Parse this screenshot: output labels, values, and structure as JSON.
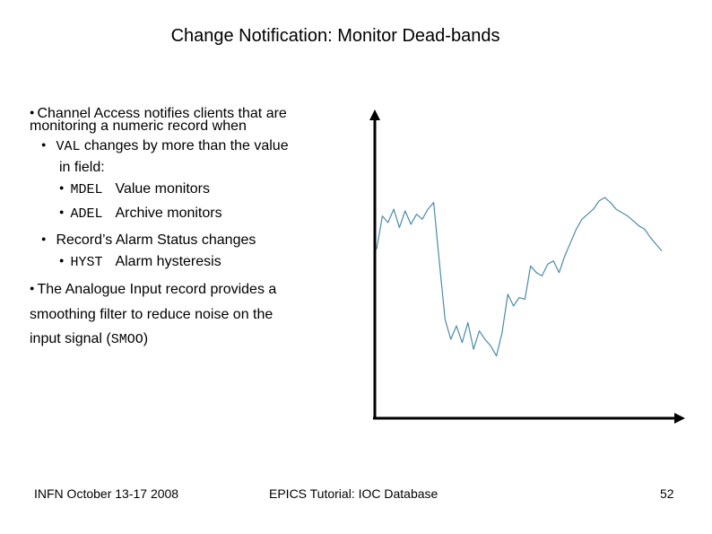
{
  "slide": {
    "title": "Change Notification: Monitor Dead-bands",
    "bullets": {
      "b1_line1": "Channel Access notifies clients that are",
      "b1_line2": "monitoring a numeric record when",
      "sub1_code": "VAL",
      "sub1_text": " changes by more than the value",
      "sub1_line2": "in field:",
      "mdel_code": "MDEL",
      "mdel_text": "Value monitors",
      "adel_code": "ADEL",
      "adel_text": "Archive monitors",
      "sub2_text": "Record’s Alarm Status changes",
      "hyst_code": "HYST",
      "hyst_text": "Alarm hysteresis",
      "b2_line1": "The Analogue Input record provides a",
      "b2_line2": "smoothing filter to reduce noise on the",
      "b2_line3_pre": "input signal (",
      "b2_line3_code": "SMOO",
      "b2_line3_post": ")"
    },
    "bullet_glyph": "●",
    "signal_color": "#4a8ca8"
  },
  "chart_data": {
    "type": "line",
    "title": "",
    "xlabel": "",
    "ylabel": "",
    "x": [
      0,
      2,
      4,
      6,
      8,
      10,
      12,
      14,
      16,
      18,
      20,
      22,
      24,
      26,
      28,
      30,
      32,
      34,
      36,
      38,
      40,
      42,
      44,
      46,
      48,
      50,
      52,
      54,
      56,
      58,
      60,
      62,
      64,
      66,
      68,
      70,
      72,
      74,
      76,
      78,
      80,
      82,
      84,
      86,
      88,
      90,
      92,
      94,
      96,
      98,
      100
    ],
    "series": [
      {
        "values": [
          0.42,
          0.62,
          0.58,
          0.66,
          0.55,
          0.65,
          0.57,
          0.63,
          0.6,
          0.66,
          0.7,
          0.34,
          0.0,
          -0.12,
          -0.04,
          -0.14,
          -0.02,
          -0.18,
          -0.07,
          -0.12,
          -0.16,
          -0.22,
          -0.08,
          0.15,
          0.08,
          0.13,
          0.12,
          0.32,
          0.28,
          0.26,
          0.33,
          0.35,
          0.28,
          0.38,
          0.46,
          0.54,
          0.6,
          0.63,
          0.66,
          0.71,
          0.73,
          0.7,
          0.66,
          0.64,
          0.62,
          0.59,
          0.56,
          0.54,
          0.49,
          0.45,
          0.41
        ]
      }
    ],
    "ylim": [
      -0.4,
      1.0
    ],
    "grid": false
  },
  "footer": {
    "left": "INFN October 13-17 2008",
    "center": "EPICS Tutorial: IOC Database",
    "page": "52"
  }
}
